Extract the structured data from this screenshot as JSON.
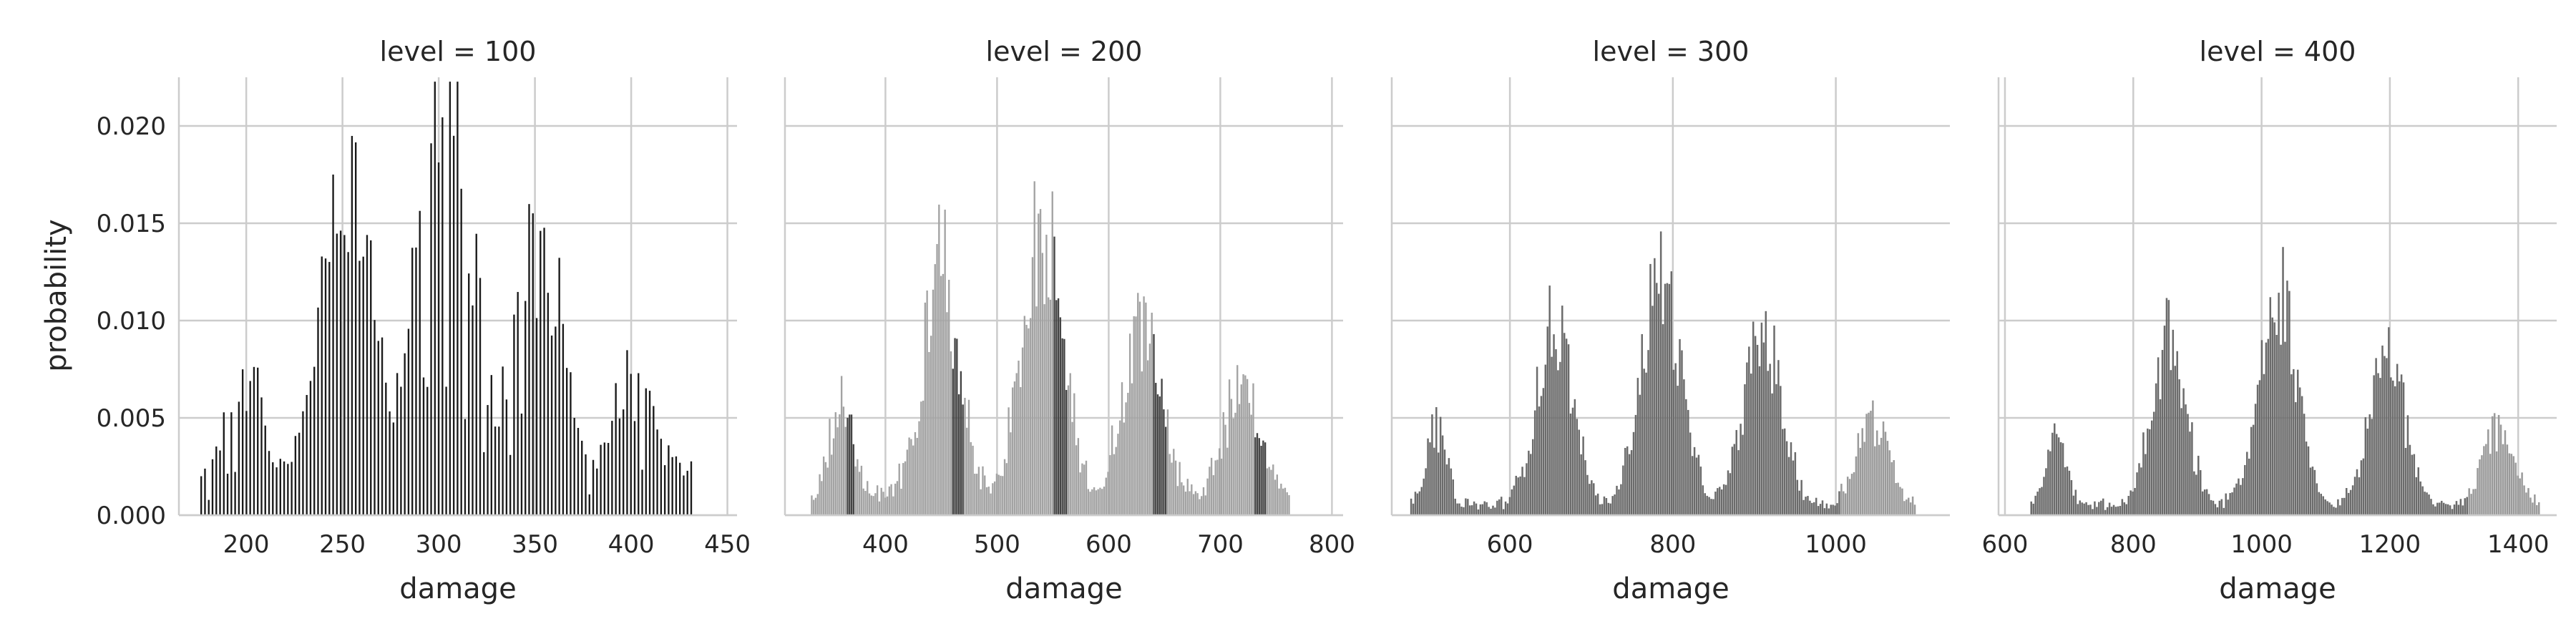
{
  "figure": {
    "ylabel": "probability",
    "xlabel": "damage",
    "yticks": [
      "0.000",
      "0.005",
      "0.010",
      "0.015",
      "0.020"
    ]
  },
  "chart_data": [
    {
      "type": "bar",
      "title": "level = 100",
      "xlabel": "damage",
      "ylabel": "probability",
      "xlim": [
        165,
        455
      ],
      "ylim": [
        0,
        0.0225
      ],
      "xticks": [
        200,
        250,
        300,
        350,
        400,
        450
      ],
      "yticks": [
        0,
        0.005,
        0.01,
        0.015,
        0.02
      ],
      "grid": true,
      "peaks": [
        {
          "center": 200,
          "width": 9,
          "height": 0.0062
        },
        {
          "center": 252,
          "width": 13,
          "height": 0.0168
        },
        {
          "center": 303,
          "width": 14,
          "height": 0.0212
        },
        {
          "center": 352,
          "width": 13,
          "height": 0.0133
        },
        {
          "center": 400,
          "width": 12,
          "height": 0.0052
        }
      ],
      "baseline_max": 0.0025,
      "colors": [
        "#1a1a1a"
      ]
    },
    {
      "type": "bar",
      "title": "level = 200",
      "xlabel": "damage",
      "ylabel": "probability",
      "xlim": [
        310,
        810
      ],
      "ylim": [
        0,
        0.0225
      ],
      "xticks": [
        400,
        500,
        600,
        700,
        800
      ],
      "yticks": [
        0,
        0.005,
        0.01,
        0.015,
        0.02
      ],
      "grid": true,
      "peaks": [
        {
          "center": 360,
          "width": 10,
          "height": 0.0048
        },
        {
          "center": 450,
          "width": 16,
          "height": 0.0118
        },
        {
          "center": 540,
          "width": 18,
          "height": 0.0142
        },
        {
          "center": 630,
          "width": 17,
          "height": 0.0088
        },
        {
          "center": 720,
          "width": 16,
          "height": 0.0058
        }
      ],
      "baseline_max": 0.0015,
      "colors": [
        "#a3a3a3",
        "#444444"
      ]
    },
    {
      "type": "bar",
      "title": "level = 300",
      "xlabel": "damage",
      "ylabel": "probability",
      "xlim": [
        455,
        1140
      ],
      "ylim": [
        0,
        0.0225
      ],
      "xticks": [
        600,
        800,
        1000
      ],
      "yticks": [
        0,
        0.005,
        0.01,
        0.015,
        0.02
      ],
      "grid": true,
      "peaks": [
        {
          "center": 510,
          "width": 12,
          "height": 0.0042
        },
        {
          "center": 655,
          "width": 22,
          "height": 0.0095
        },
        {
          "center": 785,
          "width": 24,
          "height": 0.012
        },
        {
          "center": 910,
          "width": 23,
          "height": 0.009
        },
        {
          "center": 1045,
          "width": 20,
          "height": 0.0045
        }
      ],
      "baseline_max": 0.0008,
      "colors": [
        "#6b6b6b",
        "#9a9a9a"
      ]
    },
    {
      "type": "bar",
      "title": "level = 400",
      "xlabel": "damage",
      "ylabel": "probability",
      "xlim": [
        590,
        1460
      ],
      "ylim": [
        0,
        0.0225
      ],
      "xticks": [
        600,
        800,
        1000,
        1200,
        1400
      ],
      "yticks": [
        0,
        0.005,
        0.01,
        0.015,
        0.02
      ],
      "grid": true,
      "peaks": [
        {
          "center": 680,
          "width": 15,
          "height": 0.0038
        },
        {
          "center": 855,
          "width": 26,
          "height": 0.0088
        },
        {
          "center": 1025,
          "width": 28,
          "height": 0.0115
        },
        {
          "center": 1195,
          "width": 27,
          "height": 0.0082
        },
        {
          "center": 1370,
          "width": 24,
          "height": 0.004
        }
      ],
      "baseline_max": 0.0008,
      "colors": [
        "#6b6b6b",
        "#9a9a9a"
      ]
    }
  ]
}
